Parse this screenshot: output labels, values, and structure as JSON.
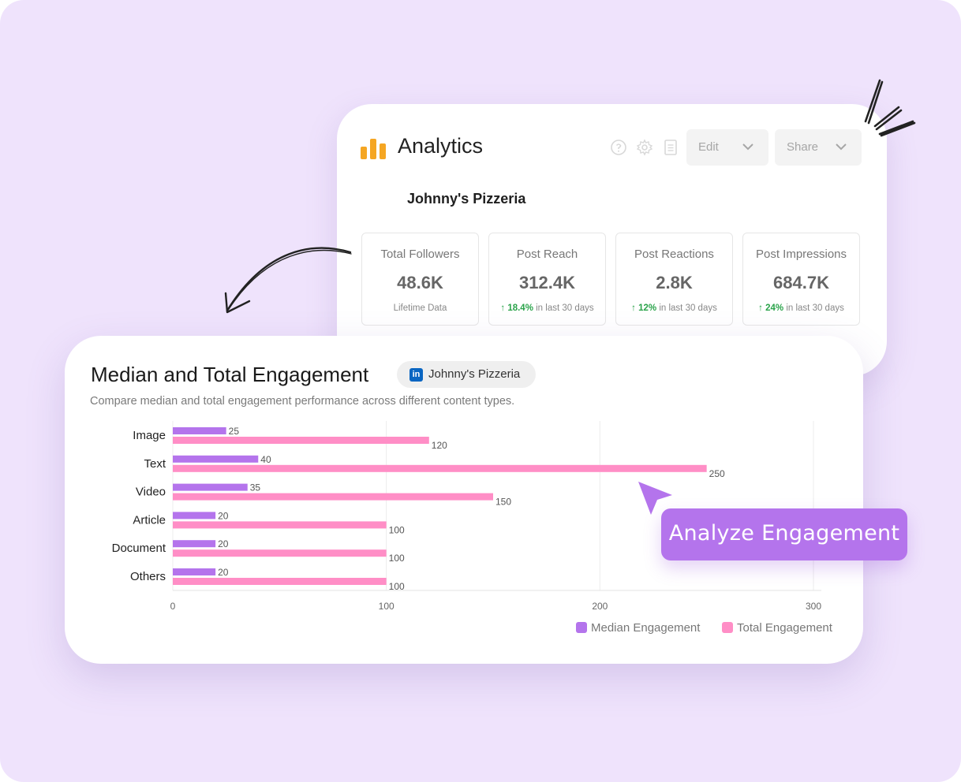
{
  "analytics": {
    "title": "Analytics",
    "edit_label": "Edit",
    "share_label": "Share",
    "business_name": "Johnny's Pizzeria",
    "stats": [
      {
        "label": "Total Followers",
        "value": "48.6K",
        "sub": "Lifetime Data",
        "change": ""
      },
      {
        "label": "Post Reach",
        "value": "312.4K",
        "change": "18.4%",
        "sub": "in last 30 days"
      },
      {
        "label": "Post Reactions",
        "value": "2.8K",
        "change": "12%",
        "sub": "in last 30 days"
      },
      {
        "label": "Post Impressions",
        "value": "684.7K",
        "change": "24%",
        "sub": "in last 30 days"
      }
    ],
    "colors": {
      "logo": "#f5a623",
      "positive": "#2aa34a"
    }
  },
  "engagement": {
    "title": "Median and Total Engagement",
    "chip_label": "Johnny's Pizzeria",
    "chip_icon": "linkedin-icon",
    "subtitle": "Compare median and total engagement performance across different content types."
  },
  "chart_data": {
    "type": "bar",
    "orientation": "horizontal",
    "categories": [
      "Image",
      "Text",
      "Video",
      "Article",
      "Document",
      "Others"
    ],
    "series": [
      {
        "name": "Median Engagement",
        "values": [
          25,
          40,
          35,
          20,
          20,
          20
        ],
        "color": "#b474ec"
      },
      {
        "name": "Total Engagement",
        "values": [
          120,
          250,
          150,
          100,
          100,
          100
        ],
        "color": "#ff8ec6"
      }
    ],
    "xlim": [
      0,
      300
    ],
    "xticks": [
      0,
      100,
      200,
      300
    ],
    "grid": true,
    "legend": "bottom-right"
  },
  "cta": {
    "label": "Analyze Engagement",
    "color": "#b474ec"
  }
}
